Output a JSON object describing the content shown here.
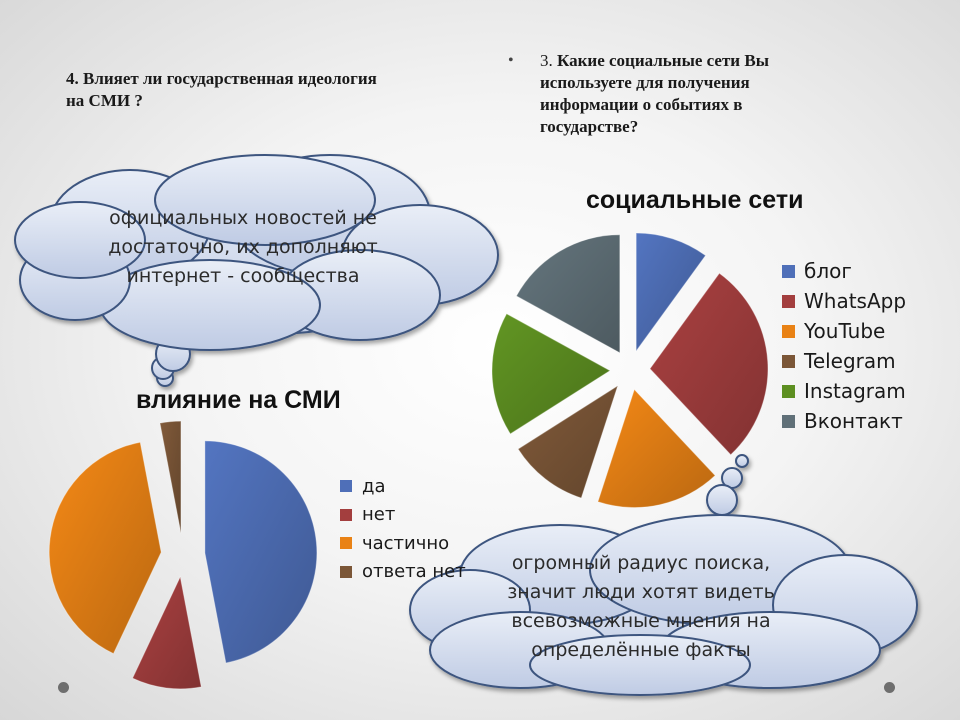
{
  "questions": {
    "q4": "4. Влияет ли государственная идеология на СМИ ?",
    "q3_number": "3.",
    "q3_text": "Какие социальные сети Вы используете для получения информации о событиях в государстве?"
  },
  "bubbles": {
    "top_left": "официальных новостей не достаточно, их дополняют интернет - сообщества",
    "bottom_right": "огромный радиус поиска, значит люди хотят видеть всевозможные мнения на определённые факты"
  },
  "chart_data": [
    {
      "type": "pie",
      "title": "социальные сети",
      "categories": [
        "блог",
        "WhatsApp",
        "YouTube",
        "Telegram",
        "Instagram",
        "Вконтакт"
      ],
      "values": [
        10,
        28,
        17,
        11,
        17,
        17
      ],
      "colors": [
        "#4f6fb8",
        "#a33e3e",
        "#e98215",
        "#7b5637",
        "#5d8f21",
        "#607078"
      ],
      "exploded": true,
      "legend_position": "right"
    },
    {
      "type": "pie",
      "title": "влияние на СМИ",
      "categories": [
        "да",
        "нет",
        "частично",
        "ответа нет"
      ],
      "values": [
        47,
        10,
        40,
        3
      ],
      "colors": [
        "#4f6fb8",
        "#a33e3e",
        "#e98215",
        "#7b5637"
      ],
      "exploded": true,
      "legend_position": "right"
    }
  ]
}
